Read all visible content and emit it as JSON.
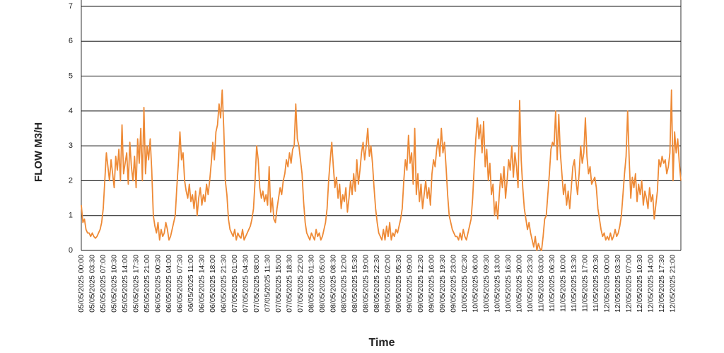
{
  "chart_data": {
    "type": "line",
    "x_label": "Time",
    "y_label": "FLOW M3/H",
    "color": "#ee8a36",
    "ylim": [
      0,
      7
    ],
    "yticks": [
      0,
      1,
      2,
      3,
      4,
      5,
      6,
      7
    ],
    "grid": true,
    "categories": [
      "05/05/2025 00:00",
      null,
      null,
      null,
      null,
      null,
      null,
      "05/05/2025 03:30",
      null,
      null,
      null,
      null,
      null,
      null,
      "05/05/2025 07:00",
      null,
      null,
      null,
      null,
      null,
      null,
      "05/05/2025 10:30",
      null,
      null,
      null,
      null,
      null,
      null,
      "05/05/2025 14:00",
      null,
      null,
      null,
      null,
      null,
      null,
      "05/05/2025 17:30",
      null,
      null,
      null,
      null,
      null,
      null,
      "05/05/2025 21:00",
      null,
      null,
      null,
      null,
      null,
      null,
      "06/05/2025 00:30",
      null,
      null,
      null,
      null,
      null,
      null,
      "06/05/2025 04:00",
      null,
      null,
      null,
      null,
      null,
      null,
      "06/05/2025 07:30",
      null,
      null,
      null,
      null,
      null,
      null,
      "06/05/2025 11:00",
      null,
      null,
      null,
      null,
      null,
      null,
      "06/05/2025 14:30",
      null,
      null,
      null,
      null,
      null,
      null,
      "06/05/2025 18:00",
      null,
      null,
      null,
      null,
      null,
      null,
      "06/05/2025 21:30",
      null,
      null,
      null,
      null,
      null,
      null,
      "07/05/2025 01:00",
      null,
      null,
      null,
      null,
      null,
      null,
      "07/05/2025 04:30",
      null,
      null,
      null,
      null,
      null,
      null,
      "07/05/2025 08:00",
      null,
      null,
      null,
      null,
      null,
      null,
      "07/05/2025 11:30",
      null,
      null,
      null,
      null,
      null,
      null,
      "07/05/2025 15:00",
      null,
      null,
      null,
      null,
      null,
      null,
      "07/05/2025 18:30",
      null,
      null,
      null,
      null,
      null,
      null,
      "07/05/2025 22:00",
      null,
      null,
      null,
      null,
      null,
      null,
      "08/05/2025 01:30",
      null,
      null,
      null,
      null,
      null,
      null,
      "08/05/2025 05:00",
      null,
      null,
      null,
      null,
      null,
      null,
      "08/05/2025 08:30",
      null,
      null,
      null,
      null,
      null,
      null,
      "08/05/2025 12:00",
      null,
      null,
      null,
      null,
      null,
      null,
      "08/05/2025 15:30",
      null,
      null,
      null,
      null,
      null,
      null,
      "08/05/2025 19:00",
      null,
      null,
      null,
      null,
      null,
      null,
      "08/05/2025 22:30",
      null,
      null,
      null,
      null,
      null,
      null,
      "09/05/2025 02:00",
      null,
      null,
      null,
      null,
      null,
      null,
      "09/05/2025 05:30",
      null,
      null,
      null,
      null,
      null,
      null,
      "09/05/2025 09:00",
      null,
      null,
      null,
      null,
      null,
      null,
      "09/05/2025 12:30",
      null,
      null,
      null,
      null,
      null,
      null,
      "09/05/2025 16:00",
      null,
      null,
      null,
      null,
      null,
      null,
      "09/05/2025 19:30",
      null,
      null,
      null,
      null,
      null,
      null,
      "09/05/2025 23:00",
      null,
      null,
      null,
      null,
      null,
      null,
      "10/05/2025 02:30",
      null,
      null,
      null,
      null,
      null,
      null,
      "10/05/2025 06:00",
      null,
      null,
      null,
      null,
      null,
      null,
      "10/05/2025 09:30",
      null,
      null,
      null,
      null,
      null,
      null,
      "10/05/2025 13:00",
      null,
      null,
      null,
      null,
      null,
      null,
      "10/05/2025 16:30",
      null,
      null,
      null,
      null,
      null,
      null,
      "10/05/2025 20:00",
      null,
      null,
      null,
      null,
      null,
      null,
      "10/05/2025 23:30",
      null,
      null,
      null,
      null,
      null,
      null,
      "11/05/2025 03:00",
      null,
      null,
      null,
      null,
      null,
      null,
      "11/05/2025 06:30",
      null,
      null,
      null,
      null,
      null,
      null,
      "11/05/2025 10:00",
      null,
      null,
      null,
      null,
      null,
      null,
      "11/05/2025 13:30",
      null,
      null,
      null,
      null,
      null,
      null,
      "11/05/2025 17:00",
      null,
      null,
      null,
      null,
      null,
      null,
      "11/05/2025 20:30",
      null,
      null,
      null,
      null,
      null,
      null,
      "12/05/2025 00:00",
      null,
      null,
      null,
      null,
      null,
      null,
      "12/05/2025 03:30",
      null,
      null,
      null,
      null,
      null,
      null,
      "12/05/2025 07:00",
      null,
      null,
      null,
      null,
      null,
      null,
      "12/05/2025 10:30",
      null,
      null,
      null,
      null,
      null,
      null,
      "12/05/2025 14:00",
      null,
      null,
      null,
      null,
      null,
      null,
      "12/05/2025 17:30",
      null,
      null,
      null,
      null,
      null,
      null,
      "12/05/2025 21:00",
      null,
      null,
      null,
      null,
      null
    ],
    "values": [
      1.3,
      0.8,
      0.9,
      0.6,
      0.5,
      0.5,
      0.4,
      0.5,
      0.4,
      0.35,
      0.4,
      0.5,
      0.6,
      0.8,
      1.2,
      2.0,
      2.8,
      2.4,
      2.0,
      2.6,
      2.2,
      1.8,
      2.7,
      2.3,
      2.9,
      2.0,
      3.6,
      2.2,
      2.5,
      2.8,
      1.9,
      3.1,
      2.4,
      2.0,
      2.7,
      1.8,
      3.2,
      2.5,
      3.5,
      2.0,
      4.1,
      2.2,
      3.0,
      2.6,
      3.2,
      2.3,
      1.0,
      0.7,
      0.5,
      0.8,
      0.3,
      0.6,
      0.4,
      0.5,
      0.8,
      0.6,
      0.3,
      0.4,
      0.6,
      0.8,
      1.0,
      1.8,
      2.5,
      3.4,
      2.6,
      2.8,
      2.0,
      1.7,
      1.5,
      1.9,
      1.4,
      1.6,
      1.2,
      1.7,
      1.0,
      1.5,
      1.8,
      1.3,
      1.6,
      1.4,
      1.9,
      1.6,
      2.0,
      2.5,
      3.1,
      2.6,
      3.4,
      3.6,
      4.2,
      3.8,
      4.6,
      3.5,
      2.0,
      1.6,
      0.9,
      0.6,
      0.5,
      0.4,
      0.6,
      0.3,
      0.5,
      0.4,
      0.35,
      0.6,
      0.3,
      0.4,
      0.5,
      0.6,
      0.7,
      0.9,
      1.2,
      2.0,
      3.0,
      2.6,
      1.8,
      1.5,
      1.7,
      1.4,
      1.6,
      1.3,
      2.4,
      1.1,
      1.5,
      0.9,
      0.8,
      1.2,
      1.5,
      1.8,
      1.6,
      2.0,
      2.2,
      2.6,
      2.4,
      2.8,
      2.5,
      2.9,
      3.0,
      4.2,
      3.2,
      3.0,
      2.6,
      2.2,
      1.4,
      0.8,
      0.5,
      0.4,
      0.3,
      0.5,
      0.4,
      0.3,
      0.6,
      0.4,
      0.5,
      0.3,
      0.4,
      0.6,
      0.8,
      1.2,
      2.0,
      2.6,
      3.1,
      2.4,
      1.8,
      2.1,
      1.5,
      1.9,
      1.2,
      1.6,
      1.4,
      1.8,
      1.1,
      1.5,
      2.0,
      1.6,
      2.2,
      1.7,
      2.6,
      1.9,
      2.3,
      2.8,
      3.1,
      2.6,
      3.0,
      3.5,
      2.7,
      3.0,
      2.5,
      1.8,
      1.2,
      0.8,
      0.5,
      0.4,
      0.3,
      0.6,
      0.3,
      0.7,
      0.4,
      0.8,
      0.3,
      0.5,
      0.4,
      0.6,
      0.5,
      0.7,
      0.9,
      1.2,
      2.0,
      2.6,
      2.3,
      3.3,
      2.5,
      2.8,
      1.9,
      3.5,
      1.6,
      2.2,
      1.4,
      1.9,
      1.2,
      1.6,
      2.0,
      1.5,
      1.8,
      1.3,
      2.2,
      2.6,
      2.4,
      2.9,
      3.2,
      2.7,
      3.5,
      2.8,
      3.1,
      2.4,
      1.6,
      1.0,
      0.8,
      0.6,
      0.5,
      0.4,
      0.4,
      0.3,
      0.5,
      0.3,
      0.6,
      0.4,
      0.3,
      0.5,
      0.7,
      0.9,
      1.5,
      2.4,
      3.2,
      3.8,
      3.2,
      3.6,
      2.8,
      3.7,
      2.4,
      2.9,
      2.0,
      2.5,
      1.6,
      1.9,
      1.0,
      1.4,
      0.9,
      1.6,
      2.2,
      1.8,
      2.4,
      1.5,
      2.0,
      2.6,
      2.3,
      3.0,
      2.1,
      2.8,
      2.4,
      1.8,
      4.3,
      2.6,
      1.8,
      1.2,
      0.9,
      0.6,
      0.8,
      0.5,
      0.3,
      0.1,
      0.4,
      0.0,
      0.2,
      0.05,
      0.0,
      0.4,
      0.9,
      1.0,
      1.6,
      2.2,
      2.9,
      3.1,
      3.0,
      4.0,
      2.6,
      3.9,
      2.8,
      2.2,
      1.6,
      1.9,
      1.3,
      1.7,
      1.2,
      1.8,
      2.4,
      2.6,
      2.0,
      1.6,
      2.2,
      3.0,
      2.5,
      2.8,
      3.8,
      2.7,
      2.2,
      2.4,
      1.9,
      2.0,
      2.1,
      1.8,
      1.2,
      0.9,
      0.6,
      0.4,
      0.5,
      0.3,
      0.4,
      0.3,
      0.5,
      0.3,
      0.4,
      0.6,
      0.4,
      0.5,
      0.7,
      1.0,
      1.6,
      2.2,
      2.7,
      4.0,
      2.6,
      1.5,
      2.1,
      1.8,
      2.2,
      1.4,
      1.9,
      1.6,
      2.0,
      1.3,
      1.7,
      1.5,
      1.2,
      1.8,
      1.4,
      1.6,
      0.9,
      1.3,
      1.7,
      2.6,
      2.4,
      2.7,
      2.5,
      2.6,
      2.2,
      2.4,
      2.8,
      4.6,
      2.0,
      3.4,
      2.8,
      3.2,
      2.5,
      2.0
    ]
  }
}
